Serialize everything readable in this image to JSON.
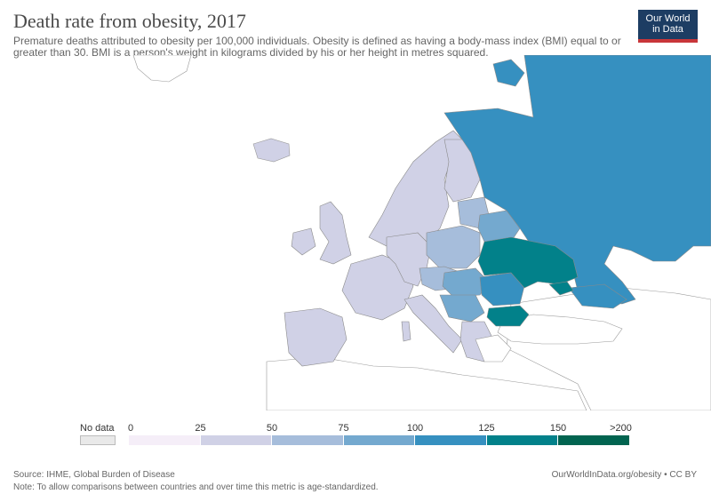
{
  "header": {
    "title": "Death rate from obesity, 2017",
    "subtitle": "Premature deaths attributed to obesity per 100,000 individuals. Obesity is defined as having a body-mass index (BMI) equal to or greater than 30. BMI is a person's weight in kilograms divided by his or her height in metres squared.",
    "logo_line1": "Our World",
    "logo_line2": "in Data"
  },
  "legend": {
    "no_data_label": "No data",
    "bins": [
      {
        "from": "0",
        "to": "25",
        "color": "#f5eef8"
      },
      {
        "from": "25",
        "to": "50",
        "color": "#d0d1e6"
      },
      {
        "from": "50",
        "to": "75",
        "color": "#a6bddb"
      },
      {
        "from": "75",
        "to": "100",
        "color": "#74a9cf"
      },
      {
        "from": "100",
        "to": "125",
        "color": "#3690c0"
      },
      {
        "from": "125",
        "to": "150",
        "color": "#02818a"
      },
      {
        "from": "150",
        "to": ">200",
        "color": "#016450"
      }
    ],
    "tick_labels": [
      "0",
      "25",
      "50",
      "75",
      "100",
      "125",
      "150",
      ">200"
    ]
  },
  "map": {
    "region": "Europe",
    "colors": {
      "no_data": "#ffffff",
      "band_25_50": "#d0d1e6",
      "band_50_75": "#a6bddb",
      "band_75_100": "#74a9cf",
      "band_100_125": "#3690c0",
      "band_125_150": "#02818a",
      "border": "#8a8a8a"
    }
  },
  "footer": {
    "source": "Source: IHME, Global Burden of Disease",
    "note": "Note: To allow comparisons between countries and over time this metric is age-standardized.",
    "url": "OurWorldInData.org/obesity • CC BY"
  }
}
